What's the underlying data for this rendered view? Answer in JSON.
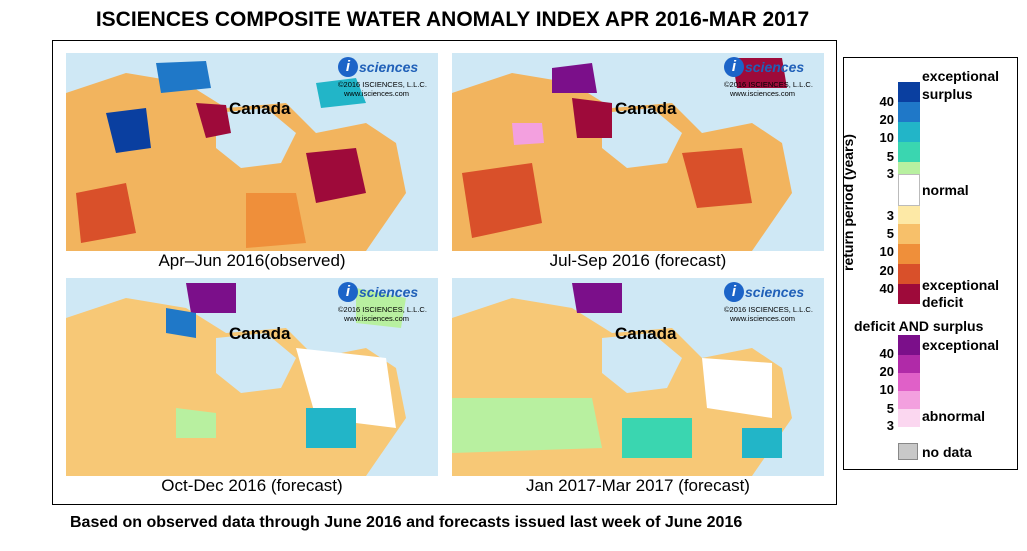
{
  "title": "ISCIENCES COMPOSITE WATER ANOMALY INDEX APR 2016-MAR 2017",
  "footnote": "Based on observed data through June 2016 and forecasts issued last week of June 2016",
  "logo": {
    "letter": "i",
    "brand": "sciences",
    "copyright": "©2016  ISCIENCES, L.L.C.",
    "url": "www.isciences.com"
  },
  "maps": [
    {
      "caption": "Apr–Jun 2016(observed)",
      "label": "Canada"
    },
    {
      "caption": "Jul-Sep 2016 (forecast)",
      "label": "Canada"
    },
    {
      "caption": "Oct-Dec 2016 (forecast)",
      "label": "Canada"
    },
    {
      "caption": "Jan 2017-Mar 2017 (forecast)",
      "label": "Canada"
    }
  ],
  "legend": {
    "axis_label": "return period (years)",
    "surplus_label": "exceptional surplus",
    "surplus_line1": "exceptional",
    "surplus_line2": "surplus",
    "normal_label": "normal",
    "deficit_line1": "exceptional",
    "deficit_line2": "deficit",
    "surplus_ticks": [
      "40",
      "20",
      "10",
      "5",
      "3"
    ],
    "deficit_ticks": [
      "3",
      "5",
      "10",
      "20",
      "40"
    ],
    "both_title": "deficit AND surplus",
    "both_top": "exceptional",
    "both_bottom": "abnormal",
    "both_ticks": [
      "40",
      "20",
      "10",
      "5",
      "3"
    ],
    "no_data": "no data",
    "colors": {
      "surplus": [
        "#0a3fa0",
        "#1f78c8",
        "#22b5c8",
        "#3ad6b0",
        "#b8f0a0"
      ],
      "normal": "#ffffff",
      "deficit": [
        "#fde9a6",
        "#f7c06a",
        "#ef8f3a",
        "#d9502a",
        "#9e0a3a"
      ],
      "both": [
        "#7b0f8a",
        "#b02aa8",
        "#e060c8",
        "#f3a0df",
        "#fbd7f0"
      ],
      "no_data": "#c8c8c8",
      "water": "#cfe8f5"
    }
  }
}
